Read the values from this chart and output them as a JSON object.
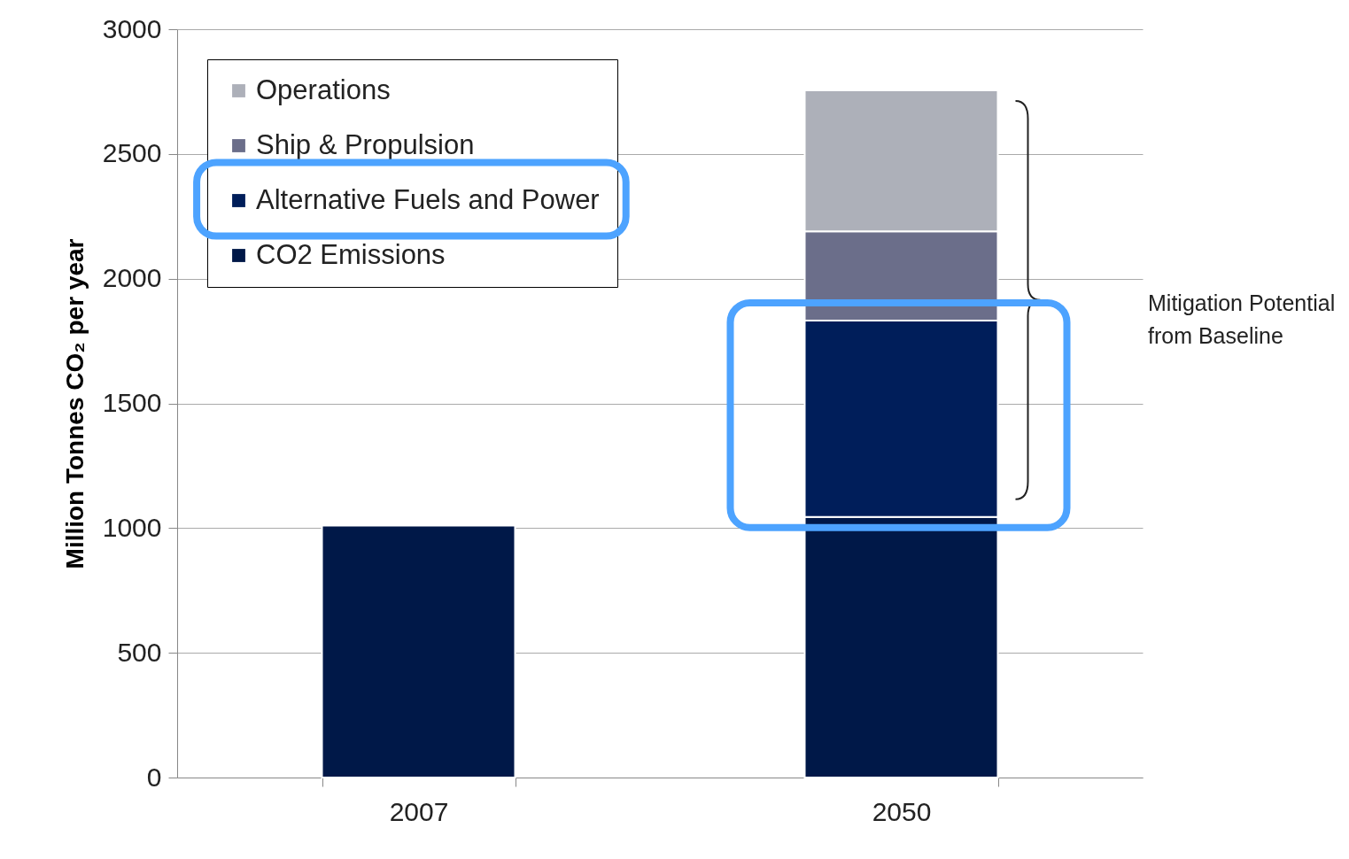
{
  "chart_data": {
    "type": "bar",
    "stacked": true,
    "categories": [
      "2007",
      "2050"
    ],
    "series": [
      {
        "name": "CO2 Emissions",
        "color": "#001848",
        "values": [
          1010,
          1045
        ]
      },
      {
        "name": "Alternative Fuels and Power",
        "color": "#001e5a",
        "values": [
          null,
          787
        ]
      },
      {
        "name": "Ship & Propulsion",
        "color": "#6b6e8a",
        "values": [
          null,
          358
        ]
      },
      {
        "name": "Operations",
        "color": "#adb0b9",
        "values": [
          null,
          565
        ]
      }
    ],
    "ylabel": "Million Tonnes CO₂ per year",
    "ylim": [
      0,
      3000
    ],
    "yticks": [
      0,
      500,
      1000,
      1500,
      2000,
      2500,
      3000
    ],
    "grid": "y",
    "legend": "top left",
    "annotations": [
      "Mitigation Potential\nfrom Baseline"
    ]
  }
}
